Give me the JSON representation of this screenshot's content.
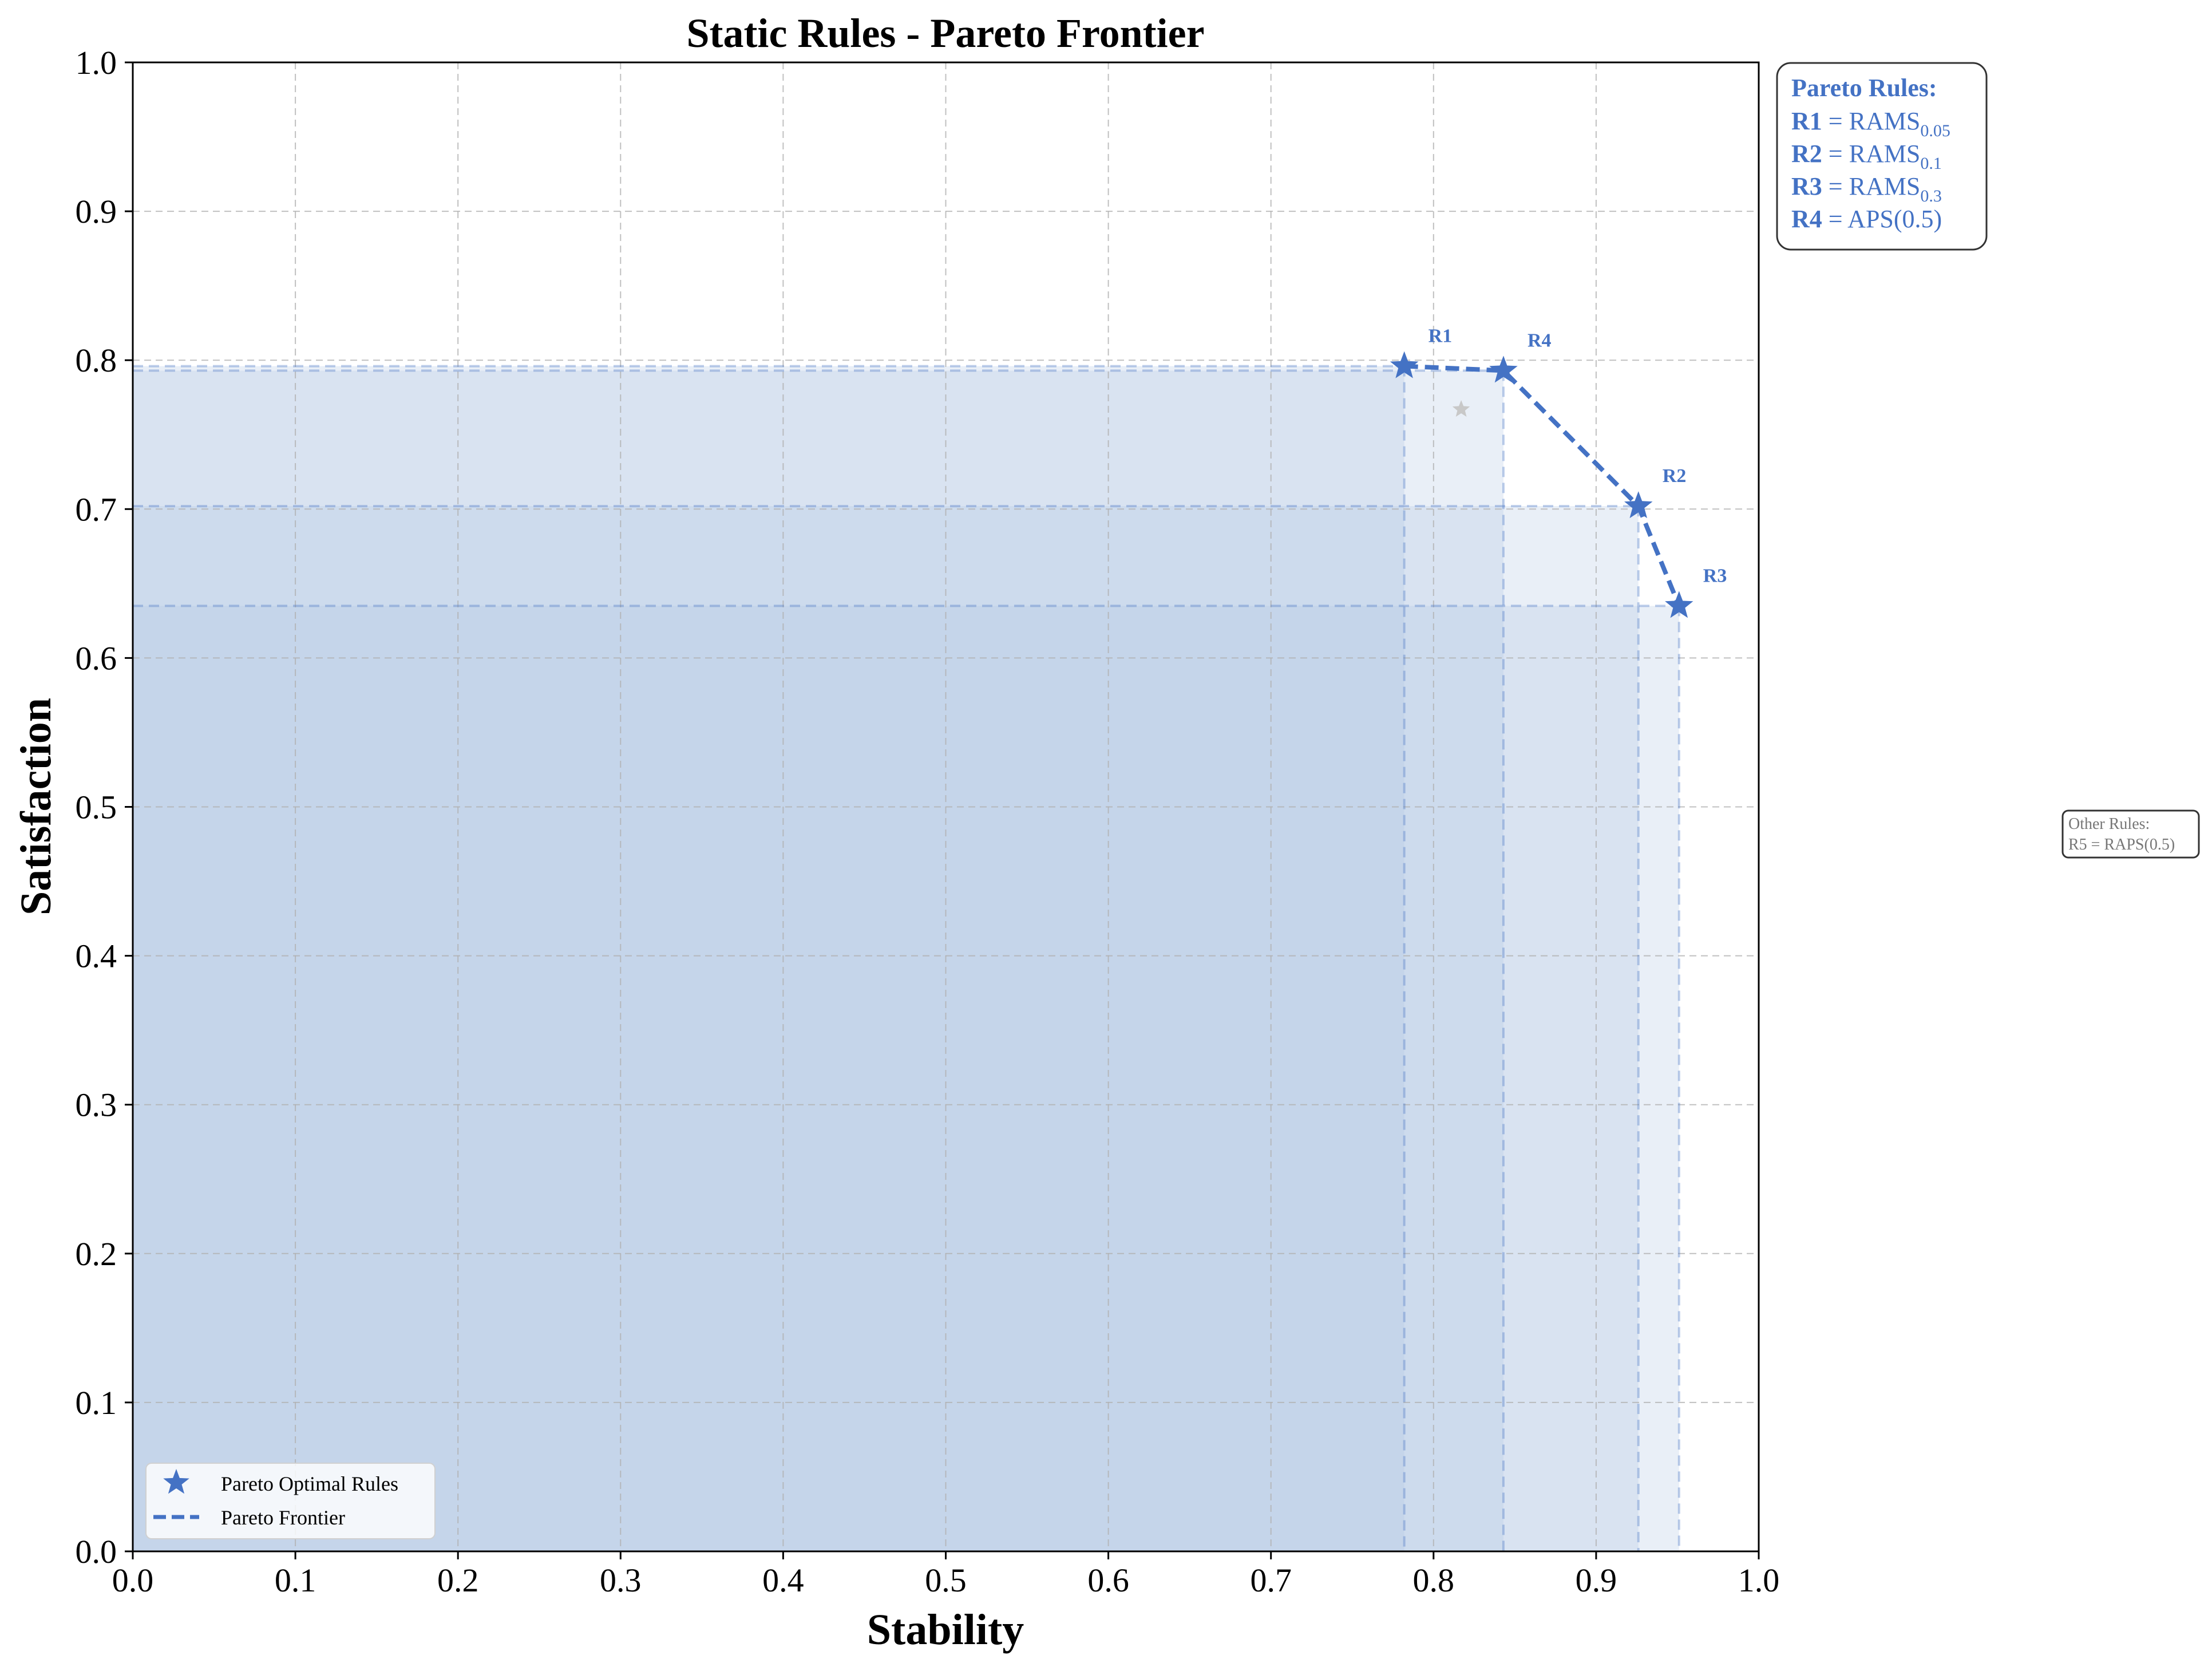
{
  "colors": {
    "accent": "#4472c4",
    "fill": "#b0c4e4",
    "grid": "#b0b0b0",
    "dominated": "#c8c8c8",
    "other_text": "#777777"
  },
  "chart_data": {
    "type": "scatter",
    "title": "Static Rules - Pareto Frontier",
    "xlabel": "Stability",
    "ylabel": "Satisfaction",
    "xlim": [
      0.0,
      1.0
    ],
    "ylim": [
      0.0,
      1.0
    ],
    "x_ticks": [
      "0.0",
      "0.1",
      "0.2",
      "0.3",
      "0.4",
      "0.5",
      "0.6",
      "0.7",
      "0.8",
      "0.9",
      "1.0"
    ],
    "y_ticks": [
      "0.0",
      "0.1",
      "0.2",
      "0.3",
      "0.4",
      "0.5",
      "0.6",
      "0.7",
      "0.8",
      "0.9",
      "1.0"
    ],
    "grid": true,
    "series": [
      {
        "name": "Pareto Optimal Rules",
        "marker": "star",
        "points": [
          {
            "label": "R1",
            "x": 0.782,
            "y": 0.796
          },
          {
            "label": "R4",
            "x": 0.843,
            "y": 0.793
          },
          {
            "label": "R2",
            "x": 0.926,
            "y": 0.702
          },
          {
            "label": "R3",
            "x": 0.951,
            "y": 0.635
          }
        ]
      },
      {
        "name": "Pareto Frontier",
        "line": "dashed",
        "order": [
          "R1",
          "R4",
          "R2",
          "R3"
        ]
      }
    ],
    "dominated_points": [
      {
        "label": "R5",
        "x": 0.817,
        "y": 0.767
      }
    ],
    "legend": {
      "placement": "lower-left",
      "entries": [
        "Pareto Optimal Rules",
        "Pareto Frontier"
      ]
    },
    "annotations": {
      "pareto_box": {
        "header": "Pareto Rules:",
        "rules": [
          {
            "id": "R1",
            "eq": " = ",
            "name": "RAMS",
            "sub": "0.05",
            "suffix": ""
          },
          {
            "id": "R2",
            "eq": " = ",
            "name": "RAMS",
            "sub": "0.1",
            "suffix": ""
          },
          {
            "id": "R3",
            "eq": " = ",
            "name": "RAMS",
            "sub": "0.3",
            "suffix": ""
          },
          {
            "id": "R4",
            "eq": " = ",
            "name": "APS(0.5)",
            "sub": "",
            "suffix": ""
          }
        ]
      },
      "other_box": {
        "header": "Other Rules:",
        "lines": [
          "R5 = RAPS(0.5)"
        ]
      }
    }
  }
}
